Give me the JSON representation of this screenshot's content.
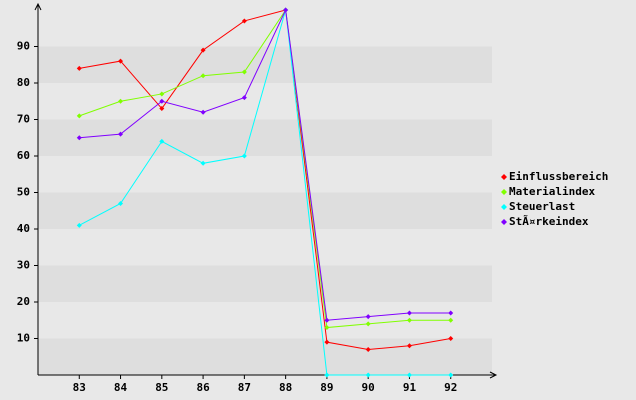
{
  "chart_data": {
    "type": "line",
    "categories": [
      "83",
      "84",
      "85",
      "86",
      "87",
      "88",
      "89",
      "90",
      "91",
      "92"
    ],
    "series": [
      {
        "name": "Einflussbereich",
        "color": "#ff0000",
        "values": [
          84,
          86,
          73,
          89,
          97,
          100,
          9,
          7,
          8,
          10
        ]
      },
      {
        "name": "Materialindex",
        "color": "#80ff00",
        "values": [
          71,
          75,
          77,
          82,
          83,
          100,
          13,
          14,
          15,
          15
        ]
      },
      {
        "name": "Steuerlast",
        "color": "#00ffff",
        "values": [
          41,
          47,
          64,
          58,
          60,
          100,
          0,
          0,
          0,
          0
        ]
      },
      {
        "name": "StÃ¤rkeindex",
        "color": "#8000ff",
        "values": [
          65,
          66,
          75,
          72,
          76,
          100,
          15,
          16,
          17,
          17
        ]
      }
    ],
    "ylim": [
      0,
      100
    ],
    "yticks": [
      10,
      20,
      30,
      40,
      50,
      60,
      70,
      80,
      90
    ],
    "grid": true,
    "legend": "right"
  }
}
